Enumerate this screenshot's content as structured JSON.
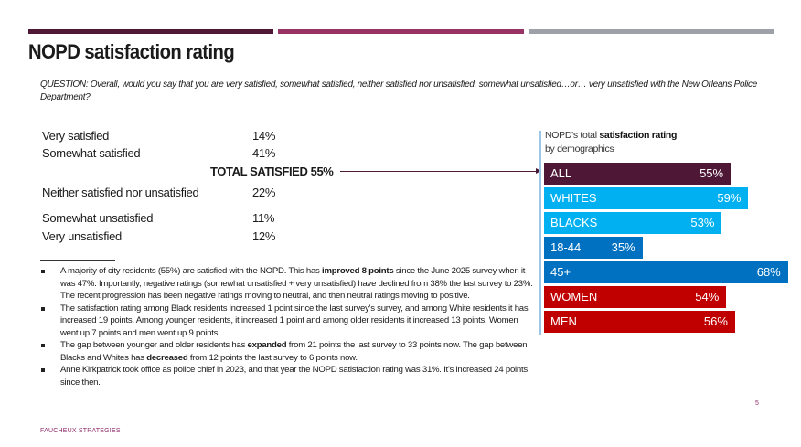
{
  "header": {
    "title": "NOPD satisfaction rating",
    "accent_colors": [
      "#4e1736",
      "#973463",
      "#9ea2a8"
    ]
  },
  "question": "QUESTION: Overall, would you say that you are very satisfied, somewhat satisfied, neither satisfied nor unsatisfied, somewhat unsatisfied…or… very unsatisfied with the New Orleans Police Department?",
  "responses": [
    {
      "label": "Very satisfied",
      "value": "14%"
    },
    {
      "label": "Somewhat satisfied",
      "value": "41%"
    },
    {
      "label": "Neither satisfied nor unsatisfied",
      "value": "22%"
    },
    {
      "label": "Somewhat unsatisfied",
      "value": "11%"
    },
    {
      "label": "Very unsatisfied",
      "value": "12%"
    }
  ],
  "total_satisfied": "TOTAL SATISFIED 55%",
  "bullets": [
    {
      "pre": "A majority of city residents (55%) are satisfied with the NOPD. This has ",
      "bold": "improved 8 points",
      "post": " since the June 2025 survey when it was 47%. Importantly, negative ratings (somewhat unsatisfied + very unsatisfied) have declined from 38% the last survey to 23%. The recent progression has been negative ratings moving to neutral, and then neutral ratings moving to positive."
    },
    {
      "pre": "The satisfaction rating among Black residents increased 1 point since the last survey's survey, and among White residents it has increased 19 points. Among younger residents, it increased 1 point and among older residents it increased 13 points. Women went up 7 points and men went up 9 points.",
      "bold": "",
      "post": ""
    },
    {
      "pre": "The gap between younger and older residents has ",
      "bold": "expanded",
      "post": " from 21 points the last survey to 33 points now. The gap between Blacks and Whites has ",
      "bold2": "decreased",
      "post2": " from 12 points the last survey to 6 points now."
    },
    {
      "pre": "Anne Kirkpatrick took office as police chief in 2023, and that year the NOPD satisfaction rating was 31%. It's increased 24 points since then.",
      "bold": "",
      "post": ""
    }
  ],
  "footer": "FAUCHEUX STRATEGIES",
  "page_number": "5",
  "chart_data": {
    "type": "bar",
    "orientation": "horizontal",
    "title_pre": "NOPD's total ",
    "title_bold": "satisfaction rating",
    "subtitle": "by demographics",
    "categories": [
      "ALL",
      "WHITES",
      "BLACKS",
      "18-44",
      "45+",
      "WOMEN",
      "MEN"
    ],
    "values": [
      55,
      59,
      53,
      35,
      68,
      54,
      56
    ],
    "labels": [
      "55%",
      "59%",
      "53%",
      "35%",
      "68%",
      "54%",
      "56%"
    ],
    "colors": [
      "#4e1736",
      "#00b0f0",
      "#00b0f0",
      "#0070c0",
      "#0070c0",
      "#c00000",
      "#c00000"
    ]
  }
}
